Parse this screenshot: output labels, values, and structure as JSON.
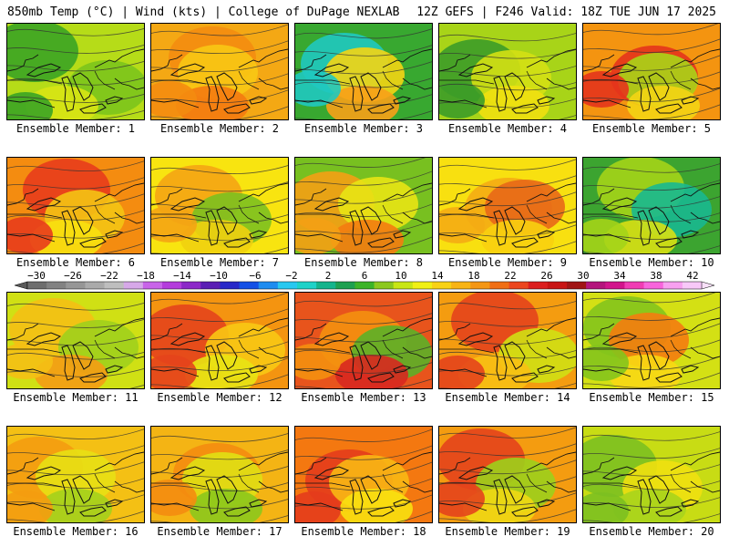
{
  "header": {
    "left": "850mb Temp (°C) | Wind (kts) | College of DuPage NEXLAB",
    "right": "12Z GEFS | F246 Valid: 18Z TUE JUN 17 2025"
  },
  "members": [
    {
      "label": "Ensemble Member: 1",
      "colors": [
        "#b6dc18",
        "#3ba424",
        "#7cc41c",
        "#d8e414"
      ]
    },
    {
      "label": "Ensemble Member: 2",
      "colors": [
        "#f4a814",
        "#f48c10",
        "#f8c814",
        "#f47a10"
      ]
    },
    {
      "label": "Ensemble Member: 3",
      "colors": [
        "#38a830",
        "#20c8c0",
        "#f4d414",
        "#f8a018"
      ]
    },
    {
      "label": "Ensemble Member: 4",
      "colors": [
        "#a8d418",
        "#3c9c28",
        "#d4e014",
        "#f0e010"
      ]
    },
    {
      "label": "Ensemble Member: 5",
      "colors": [
        "#f49410",
        "#e4341c",
        "#a8d418",
        "#f4d414"
      ]
    },
    {
      "label": "Ensemble Member: 6",
      "colors": [
        "#f48c10",
        "#e83c1c",
        "#f4c414",
        "#f8e010"
      ]
    },
    {
      "label": "Ensemble Member: 7",
      "colors": [
        "#f8e410",
        "#f4a414",
        "#7cc020",
        "#f0d010"
      ]
    },
    {
      "label": "Ensemble Member: 8",
      "colors": [
        "#78c020",
        "#f4a014",
        "#e8e414",
        "#f47c10"
      ]
    },
    {
      "label": "Ensemble Member: 9",
      "colors": [
        "#f8e010",
        "#f4ac14",
        "#e86818",
        "#f8d010"
      ]
    },
    {
      "label": "Ensemble Member: 10",
      "colors": [
        "#3ca430",
        "#a4d418",
        "#18b890",
        "#d8e014"
      ]
    },
    {
      "label": "Ensemble Member: 11",
      "colors": [
        "#d0e014",
        "#f4c014",
        "#a0d01c",
        "#f49c14"
      ]
    },
    {
      "label": "Ensemble Member: 12",
      "colors": [
        "#f49410",
        "#e4441c",
        "#f8c814",
        "#e8e414"
      ]
    },
    {
      "label": "Ensemble Member: 13",
      "colors": [
        "#e8541c",
        "#f49010",
        "#5cb028",
        "#d82820"
      ]
    },
    {
      "label": "Ensemble Member: 14",
      "colors": [
        "#f49c10",
        "#e4441c",
        "#d0e014",
        "#f8c014"
      ]
    },
    {
      "label": "Ensemble Member: 15",
      "colors": [
        "#d4e014",
        "#84c41c",
        "#f47c10",
        "#f8d814"
      ]
    },
    {
      "label": "Ensemble Member: 16",
      "colors": [
        "#f4c014",
        "#f49c10",
        "#e8e014",
        "#a4d01c"
      ]
    },
    {
      "label": "Ensemble Member: 17",
      "colors": [
        "#f4b414",
        "#f48c10",
        "#e0e014",
        "#8cc81c"
      ]
    },
    {
      "label": "Ensemble Member: 18",
      "colors": [
        "#f47810",
        "#e43c1c",
        "#f8b814",
        "#f8e010"
      ]
    },
    {
      "label": "Ensemble Member: 19",
      "colors": [
        "#f49c10",
        "#e4441c",
        "#9cd01c",
        "#f0d814"
      ]
    },
    {
      "label": "Ensemble Member: 20",
      "colors": [
        "#c8dc14",
        "#7cc020",
        "#f0e010",
        "#a8d41c"
      ]
    }
  ],
  "colorbar": {
    "ticks": [
      "−30",
      "−26",
      "−22",
      "−18",
      "−14",
      "−10",
      "−6",
      "−2",
      "2",
      "6",
      "10",
      "14",
      "18",
      "22",
      "26",
      "30",
      "34",
      "38",
      "42"
    ],
    "colors": [
      "#6e6e6e",
      "#828282",
      "#969696",
      "#aaaaaa",
      "#bebebe",
      "#d6a8e8",
      "#c864e8",
      "#b43cdc",
      "#8c28c8",
      "#5a1eb4",
      "#2828c8",
      "#1450e6",
      "#1e8cf0",
      "#28c8f0",
      "#1ed2c8",
      "#14b48c",
      "#1ea050",
      "#3cb428",
      "#8cc81e",
      "#c8e614",
      "#f0f014",
      "#f8d214",
      "#f8b414",
      "#f49614",
      "#f06e14",
      "#ec461e",
      "#dc1e1e",
      "#c81414",
      "#a01414",
      "#b4147c",
      "#d2148c",
      "#f03cb4",
      "#f864dc",
      "#f8a0f0",
      "#f8c8f8"
    ]
  }
}
